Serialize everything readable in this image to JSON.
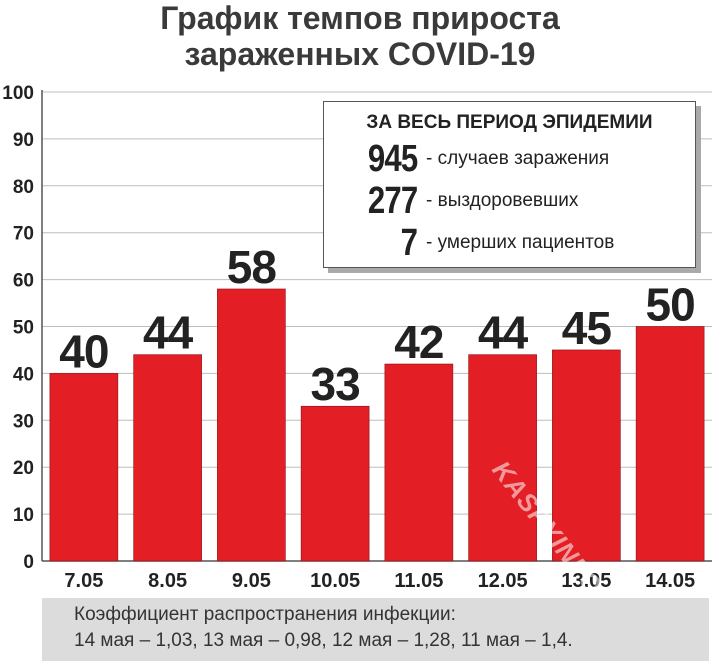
{
  "title": {
    "line1": "График темпов прироста",
    "line2": "зараженных COVID-19"
  },
  "info_box": {
    "header": "ЗА ВЕСЬ ПЕРИОД ЭПИДЕМИИ",
    "rows": [
      {
        "value": "945",
        "label": "- случаев заражения"
      },
      {
        "value": "277",
        "label": "- выздоровевших"
      },
      {
        "value": "7",
        "label": "- умерших пациентов"
      }
    ]
  },
  "footer": {
    "line1": "Коэффициент распространения инфекции:",
    "line2": "14 мая – 1,03, 13 мая – 0,98, 12 мая – 1,28, 11 мая – 1,4."
  },
  "watermark": "KASPYINFO.RU",
  "colors": {
    "bar": "#e31e24",
    "text": "#222222",
    "grid": "#bdbdbd"
  },
  "chart_data": {
    "type": "bar",
    "title": "График темпов прироста зараженных COVID-19",
    "categories": [
      "7.05",
      "8.05",
      "9.05",
      "10.05",
      "11.05",
      "12.05",
      "13.05",
      "14.05"
    ],
    "values": [
      40,
      44,
      58,
      33,
      42,
      44,
      45,
      50
    ],
    "ylim": [
      0,
      100
    ],
    "yticks": [
      0,
      10,
      20,
      30,
      40,
      50,
      60,
      70,
      80,
      90,
      100
    ],
    "grid": true
  }
}
